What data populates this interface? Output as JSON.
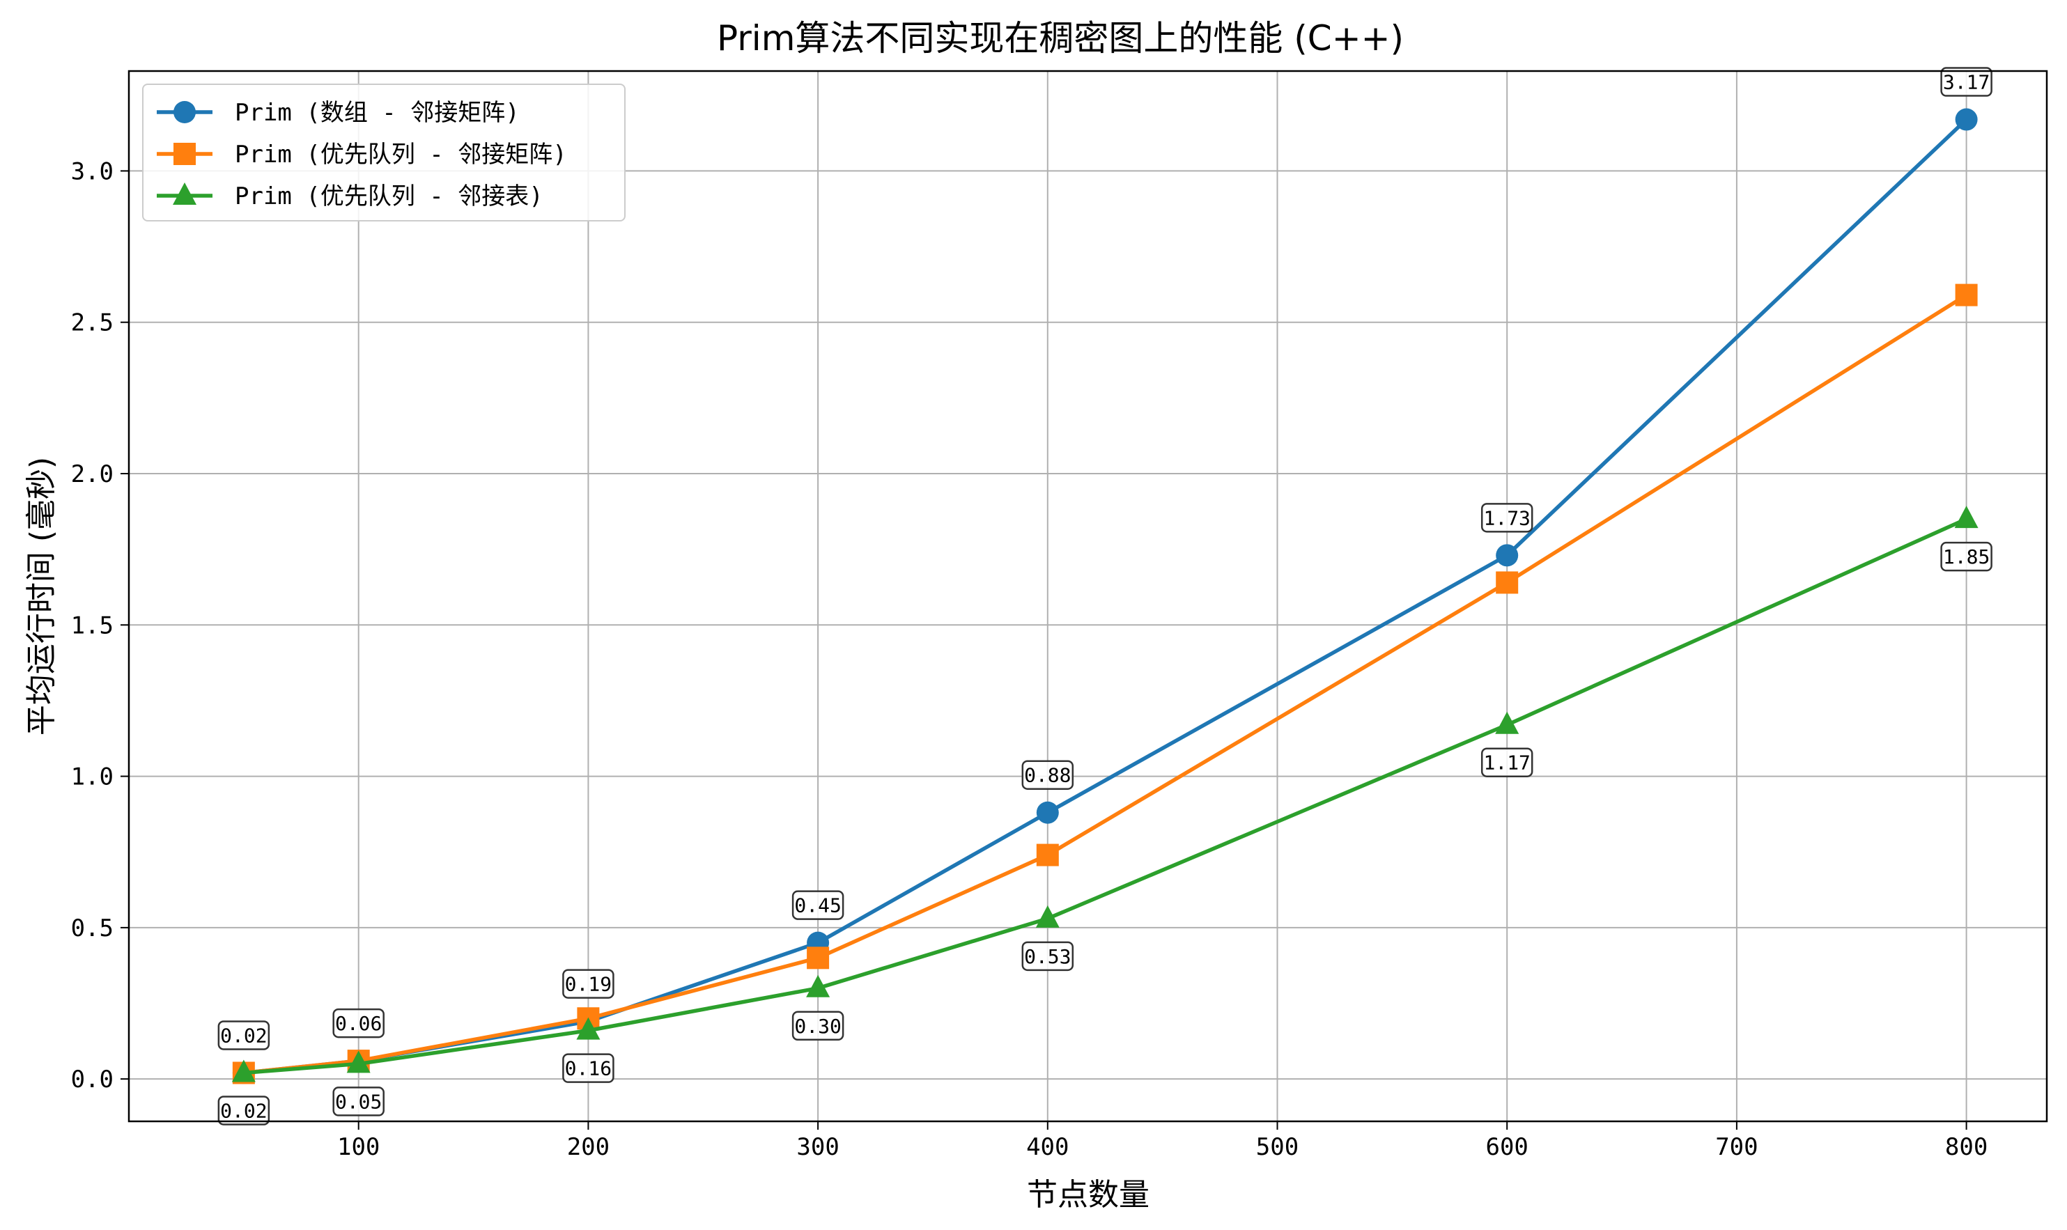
{
  "chart_data": {
    "type": "line",
    "title": "Prim算法不同实现在稠密图上的性能 (C++)",
    "xlabel": "节点数量",
    "ylabel": "平均运行时间 (毫秒)",
    "x": [
      50,
      100,
      200,
      300,
      400,
      600,
      800
    ],
    "xlim": [
      0,
      835
    ],
    "ylim": [
      -0.14,
      3.33
    ],
    "xticks": [
      100,
      200,
      300,
      400,
      500,
      600,
      700,
      800
    ],
    "yticks": [
      0.0,
      0.5,
      1.0,
      1.5,
      2.0,
      2.5,
      3.0
    ],
    "xtick_labels": [
      "100",
      "200",
      "300",
      "400",
      "500",
      "600",
      "700",
      "800"
    ],
    "ytick_labels": [
      "0.0",
      "0.5",
      "1.0",
      "1.5",
      "2.0",
      "2.5",
      "3.0"
    ],
    "grid": true,
    "legend_position": "top-left",
    "series": [
      {
        "name": "Prim (数组 - 邻接矩阵)",
        "color": "#1f77b4",
        "marker": "circle",
        "values": [
          0.02,
          0.06,
          0.19,
          0.45,
          0.88,
          1.73,
          3.17
        ],
        "labels": [
          "0.02",
          "0.06",
          "0.19",
          "0.45",
          "0.88",
          "1.73",
          "3.17"
        ],
        "label_position": "above"
      },
      {
        "name": "Prim (优先队列 - 邻接矩阵)",
        "color": "#ff7f0e",
        "marker": "square",
        "values": [
          0.02,
          0.06,
          0.2,
          0.4,
          0.74,
          1.64,
          2.59
        ]
      },
      {
        "name": "Prim (优先队列 - 邻接表)",
        "color": "#2ca02c",
        "marker": "triangle",
        "values": [
          0.02,
          0.05,
          0.16,
          0.3,
          0.53,
          1.17,
          1.85
        ],
        "labels": [
          "0.02",
          "0.05",
          "0.16",
          "0.30",
          "0.53",
          "1.17",
          "1.85"
        ],
        "label_position": "below"
      }
    ]
  }
}
